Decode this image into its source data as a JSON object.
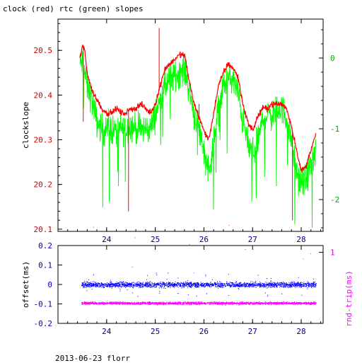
{
  "title": "clock (red) rtc (green) slopes",
  "footer": "2013-06-23 florr",
  "colors": {
    "clock": "#ff0000",
    "rtc": "#00ff00",
    "offset": "#0000ff",
    "rndtrip": "#ff00ff",
    "axis": "#000000"
  },
  "chart_data": [
    {
      "type": "line",
      "ylabel": "clockslope",
      "x_ticks": [
        "24",
        "25",
        "26",
        "27",
        "28"
      ],
      "xlim": [
        23.0,
        28.45
      ],
      "y_left_ticks": [
        "20.1",
        "20.2",
        "20.3",
        "20.4",
        "20.5"
      ],
      "ylim_left": [
        20.095,
        20.57
      ],
      "y_right_ticks": [
        "0",
        "-1",
        "-2"
      ],
      "ylim_right": [
        -2.45,
        0.55
      ],
      "series": [
        {
          "color": "red",
          "axis": "left",
          "x": [
            23.45,
            23.5,
            23.55,
            23.6,
            23.7,
            23.8,
            23.9,
            24.0,
            24.1,
            24.2,
            24.3,
            24.4,
            24.5,
            24.6,
            24.7,
            24.8,
            24.9,
            25.0,
            25.1,
            25.2,
            25.3,
            25.4,
            25.5,
            25.6,
            25.7,
            25.8,
            25.9,
            26.0,
            26.1,
            26.2,
            26.3,
            26.4,
            26.5,
            26.6,
            26.7,
            26.8,
            26.9,
            27.0,
            27.1,
            27.2,
            27.3,
            27.4,
            27.5,
            27.6,
            27.7,
            27.8,
            27.9,
            28.0,
            28.1,
            28.2,
            28.3
          ],
          "y": [
            20.48,
            20.51,
            20.5,
            20.45,
            20.41,
            20.39,
            20.37,
            20.36,
            20.36,
            20.37,
            20.36,
            20.36,
            20.37,
            20.37,
            20.38,
            20.37,
            20.36,
            20.38,
            20.42,
            20.46,
            20.47,
            20.48,
            20.49,
            20.49,
            20.43,
            20.38,
            20.35,
            20.32,
            20.3,
            20.36,
            20.42,
            20.45,
            20.47,
            20.46,
            20.44,
            20.38,
            20.34,
            20.32,
            20.35,
            20.37,
            20.37,
            20.38,
            20.38,
            20.38,
            20.37,
            20.33,
            20.28,
            20.23,
            20.24,
            20.28,
            20.31
          ]
        },
        {
          "color": "green",
          "axis": "right",
          "x": [
            23.45,
            23.5,
            23.55,
            23.6,
            23.7,
            23.8,
            23.9,
            24.0,
            24.1,
            24.2,
            24.3,
            24.4,
            24.5,
            24.6,
            24.7,
            24.8,
            24.9,
            25.0,
            25.1,
            25.2,
            25.3,
            25.4,
            25.5,
            25.6,
            25.7,
            25.8,
            25.9,
            26.0,
            26.1,
            26.2,
            26.3,
            26.4,
            26.5,
            26.6,
            26.7,
            26.8,
            26.9,
            27.0,
            27.1,
            27.2,
            27.3,
            27.4,
            27.5,
            27.6,
            27.7,
            27.8,
            27.9,
            28.0,
            28.1,
            28.2,
            28.3
          ],
          "y": [
            -0.1,
            -0.05,
            -0.2,
            -0.4,
            -0.6,
            -0.9,
            -1.0,
            -1.0,
            -1.0,
            -1.05,
            -1.0,
            -1.0,
            -0.95,
            -1.0,
            -1.0,
            -1.0,
            -1.0,
            -0.8,
            -0.6,
            -0.4,
            -0.3,
            -0.25,
            -0.2,
            -0.15,
            -0.45,
            -0.8,
            -1.0,
            -1.3,
            -1.6,
            -1.2,
            -0.7,
            -0.4,
            -0.3,
            -0.3,
            -0.5,
            -0.9,
            -1.2,
            -1.35,
            -1.2,
            -0.9,
            -0.8,
            -0.8,
            -0.75,
            -0.7,
            -0.85,
            -1.2,
            -1.6,
            -1.8,
            -1.7,
            -1.5,
            -1.3
          ]
        }
      ]
    },
    {
      "type": "scatter",
      "ylabel": "offset(ms)",
      "y2label": "rnd-trip(ms)",
      "x_ticks": [
        "24",
        "25",
        "26",
        "27",
        "28"
      ],
      "xlim": [
        23.0,
        28.45
      ],
      "y_left_ticks": [
        "0.2",
        "0.1",
        "0",
        "-0.1",
        "-0.2"
      ],
      "ylim_left": [
        -0.2,
        0.2
      ],
      "y_right_ticks": [
        "1"
      ],
      "ylim_right": [
        0.27,
        1.07
      ],
      "series": [
        {
          "color": "blue",
          "axis": "left",
          "x_range": [
            23.48,
            28.3
          ],
          "center": 0.0,
          "spread": 0.02
        },
        {
          "color": "magenta",
          "axis": "right",
          "x_range": [
            23.48,
            28.3
          ],
          "center": 0.48,
          "spread": 0.02
        }
      ]
    }
  ]
}
